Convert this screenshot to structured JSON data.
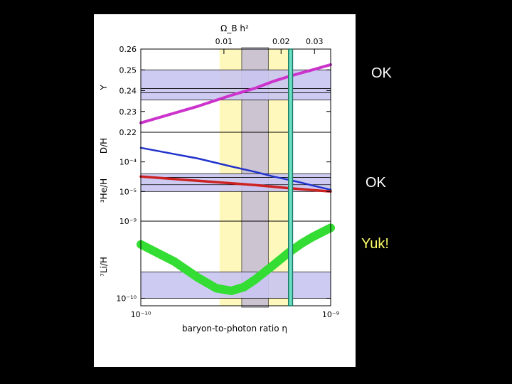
{
  "annotations": {
    "y_status": "OK",
    "dh_status": "OK",
    "li_status": "Yuk!"
  },
  "colors": {
    "background": "#000000",
    "panel": "#ffffff",
    "yellow_band": "#fff7b0",
    "cmb_band": "#6fe0c8",
    "cmb_line": "#1a7a60",
    "obs_band": "#c9c6f2",
    "kernel_band": "#bcb5d8",
    "Y_curve": "#cc33cc",
    "DH_curve": "#2233cc",
    "He3H_curve": "#cc2222",
    "Li7H_curve": "#33dd33",
    "annotation_yuk": "#ffff66"
  },
  "chart_data": {
    "type": "line",
    "xlabel": "baryon-to-photon ratio η",
    "top_axis_label": "Ω_B h²",
    "x_scale": "log",
    "xlim": [
      1e-10,
      1e-09
    ],
    "x_ticks": [
      {
        "value": 1e-10,
        "label": "10⁻¹⁰"
      },
      {
        "value": 1e-09,
        "label": "10⁻⁹"
      }
    ],
    "top_ticks": [
      {
        "value": 0.01,
        "label": "0.01"
      },
      {
        "value": 0.02,
        "label": "0.02"
      },
      {
        "value": 0.03,
        "label": "0.03"
      }
    ],
    "bands": {
      "yellow_eta": [
        2.6e-10,
        6.2e-10
      ],
      "grey_eta": [
        3.4e-10,
        4.7e-10
      ],
      "cmb_eta": [
        6e-10,
        6.3e-10
      ]
    },
    "panels": [
      {
        "id": "Y",
        "ylabel": "Y",
        "y_scale": "linear",
        "ylim": [
          0.22,
          0.26
        ],
        "y_ticks": [
          {
            "value": 0.22,
            "label": "0.22"
          },
          {
            "value": 0.23,
            "label": "0.23"
          },
          {
            "value": 0.24,
            "label": "0.24"
          },
          {
            "value": 0.25,
            "label": "0.25"
          },
          {
            "value": 0.26,
            "label": "0.26"
          }
        ],
        "obs_band": [
          0.2355,
          0.25
        ],
        "obs_lines": [
          0.239,
          0.241
        ],
        "series": [
          {
            "x": [
              1e-10,
              2e-10,
              3e-10,
              4e-10,
              5e-10,
              6e-10,
              7e-10,
              8e-10,
              1e-09
            ],
            "y": [
              0.2245,
              0.2325,
              0.2378,
              0.2412,
              0.2445,
              0.2468,
              0.2485,
              0.25,
              0.2525
            ]
          }
        ]
      },
      {
        "id": "DH_He3H",
        "ylabel": "D/H",
        "ylabel2": "³He/H",
        "y_scale": "log",
        "ylim": [
          1e-06,
          0.001
        ],
        "y_ticks": [
          {
            "value": 0.0001,
            "label": "10⁻⁴"
          },
          {
            "value": 1e-05,
            "label": "10⁻⁵"
          }
        ],
        "obs_band": [
          1e-05,
          4e-05
        ],
        "obs_lines": [
          1.7e-05,
          3e-05
        ],
        "series": [
          {
            "x": [
              1e-10,
              2e-10,
              3e-10,
              4e-10,
              5e-10,
              6e-10,
              7e-10,
              8e-10,
              1e-09
            ],
            "y": [
              0.0003,
              0.00013,
              7e-05,
              4.6e-05,
              3.2e-05,
              2.5e-05,
              2e-05,
              1.6e-05,
              1.15e-05
            ]
          },
          {
            "x": [
              1e-10,
              2e-10,
              3e-10,
              4e-10,
              5e-10,
              6e-10,
              7e-10,
              8e-10,
              1e-09
            ],
            "y": [
              3.2e-05,
              2.3e-05,
              1.9e-05,
              1.65e-05,
              1.45e-05,
              1.3e-05,
              1.2e-05,
              1.12e-05,
              1e-05
            ]
          }
        ]
      },
      {
        "id": "Li7H",
        "ylabel": "⁷Li/H",
        "y_scale": "log",
        "ylim": [
          8e-11,
          1e-09
        ],
        "y_ticks": [
          {
            "value": 1e-09,
            "label": "10⁻⁹"
          },
          {
            "value": 1e-10,
            "label": "10⁻¹⁰"
          }
        ],
        "obs_band": [
          1e-10,
          2.2e-10
        ],
        "series": [
          {
            "x": [
              1e-10,
              1.5e-10,
              2e-10,
              2.5e-10,
              3e-10,
              3.5e-10,
              4e-10,
              5e-10,
              6e-10,
              7e-10,
              8e-10,
              1e-09
            ],
            "y": [
              5e-10,
              3e-10,
              1.85e-10,
              1.35e-10,
              1.25e-10,
              1.4e-10,
              1.75e-10,
              2.7e-10,
              3.9e-10,
              5.1e-10,
              6.2e-10,
              8.2e-10
            ]
          }
        ]
      }
    ]
  }
}
